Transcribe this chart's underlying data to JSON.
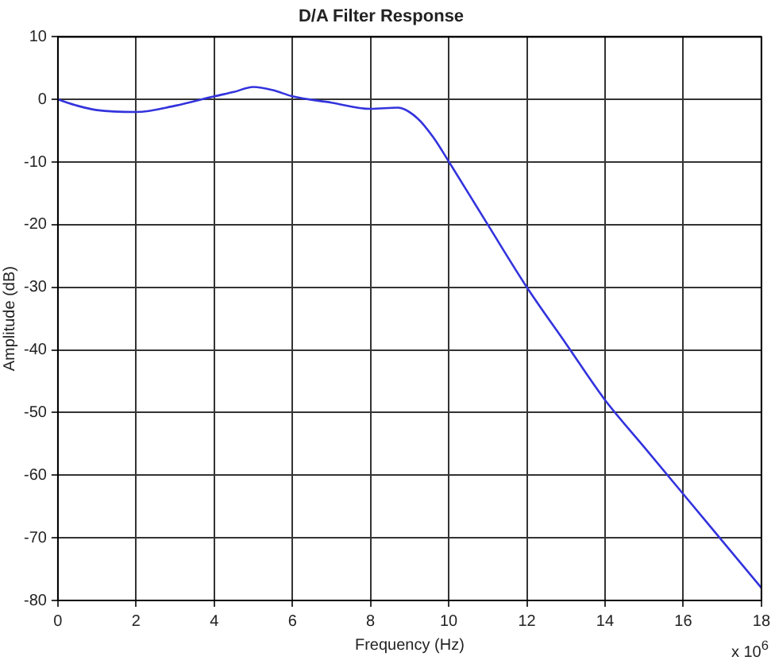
{
  "chart_data": {
    "type": "line",
    "title": "D/A Filter Response",
    "xlabel": "Frequency (Hz)",
    "ylabel": "Amplitude (dB)",
    "annotations": [
      "x 10$^{6}$"
    ],
    "series": [
      {
        "color": "#3333dd",
        "x": [
          0,
          0.5,
          1,
          2,
          3,
          4,
          4.5,
          5,
          5.5,
          6,
          7,
          8,
          8.7,
          9.2,
          9.6,
          10,
          11,
          12,
          13,
          14,
          15,
          16,
          17,
          18
        ],
        "values": [
          0,
          -1,
          -1.7,
          -2,
          -1,
          0.5,
          1.2,
          2,
          1.5,
          0.5,
          -0.5,
          -1.5,
          -1.3,
          -3,
          -6,
          -9.9,
          -20,
          -30,
          -39,
          -48,
          -55.5,
          -63,
          -70.5,
          -78
        ]
      }
    ],
    "xlim": [
      0,
      18
    ],
    "xticks": [
      0,
      2,
      4,
      6,
      8,
      10,
      12,
      14,
      16,
      18
    ],
    "ylim": [
      -80,
      10
    ],
    "yticks": [
      -80,
      -70,
      -60,
      -50,
      -40,
      -30,
      -20,
      -10,
      0,
      10
    ],
    "grid": true,
    "legend": false,
    "marker": "none",
    "line_style": "solid"
  }
}
